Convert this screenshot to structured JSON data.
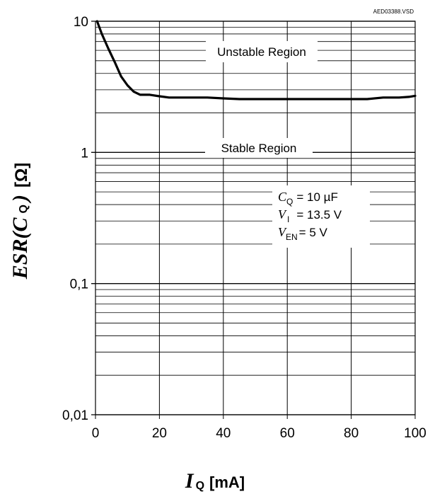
{
  "chart_data": {
    "type": "line",
    "reference": "AED03388.VSD",
    "xlim": [
      0,
      100
    ],
    "ylim": [
      0.01,
      10
    ],
    "yscale": "log",
    "grid": true,
    "x_ticks": [
      0,
      20,
      40,
      60,
      80,
      100
    ],
    "x_tick_labels": [
      "0",
      "20",
      "40",
      "60",
      "80",
      "100"
    ],
    "y_ticks": [
      0.01,
      0.1,
      1,
      10
    ],
    "y_tick_labels": [
      "0,01",
      "0,1",
      "1",
      "10"
    ],
    "xlabel": {
      "symbol": "I",
      "subscript": "Q",
      "unit": "[mA]"
    },
    "ylabel": {
      "text": "ESR(C",
      "subscript": "Q",
      "close": ")",
      "unit": "[Ω]"
    },
    "annotations": {
      "unstable": "Unstable Region",
      "stable": "Stable Region",
      "conditions": [
        {
          "symbol": "C",
          "subscript": "Q",
          "value": "= 10 µF"
        },
        {
          "symbol": "V",
          "subscript": "I",
          "value": "= 13.5 V"
        },
        {
          "symbol": "V",
          "subscript": "EN",
          "value": "= 5 V"
        }
      ]
    },
    "series": [
      {
        "x": [
          0.5,
          2,
          4,
          6,
          8,
          10,
          12,
          14,
          17,
          20,
          23,
          30,
          35,
          40,
          45,
          60,
          80,
          85,
          90,
          95,
          98,
          100
        ],
        "y": [
          10,
          8,
          6.2,
          4.9,
          3.8,
          3.25,
          2.9,
          2.75,
          2.75,
          2.68,
          2.62,
          2.62,
          2.62,
          2.58,
          2.55,
          2.55,
          2.55,
          2.55,
          2.62,
          2.62,
          2.65,
          2.7
        ]
      }
    ]
  }
}
